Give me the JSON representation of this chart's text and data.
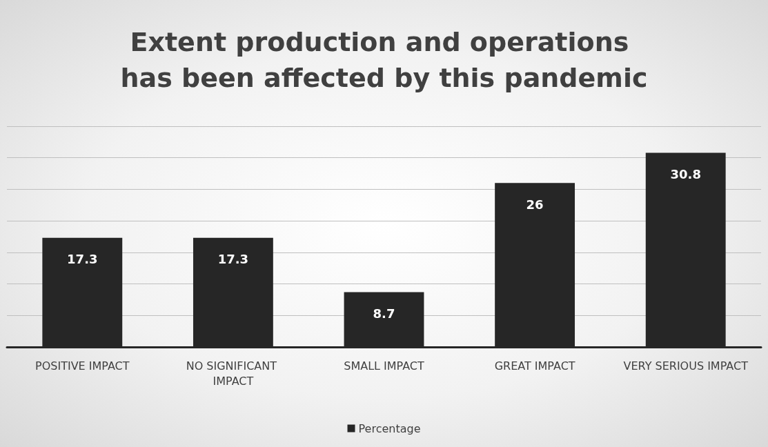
{
  "chart_data": {
    "type": "bar",
    "title": "Extent production and operations has been affected by this pandemic",
    "categories": [
      "POSITIVE IMPACT",
      "NO SIGNIFICANT IMPACT",
      "SMALL IMPACT",
      "GREAT IMPACT",
      "VERY SERIOUS IMPACT"
    ],
    "series": [
      {
        "name": "Percentage",
        "color": "#262626",
        "values": [
          17.3,
          17.3,
          8.7,
          26,
          30.8
        ]
      }
    ],
    "ylim": [
      0,
      35
    ],
    "yticks": [
      {
        "value": 0,
        "label": null
      },
      {
        "value": 5,
        "label": null
      },
      {
        "value": 10,
        "label": null
      },
      {
        "value": 15,
        "label": null
      },
      {
        "value": 20,
        "label": null
      },
      {
        "value": 25,
        "label": null
      },
      {
        "value": 30,
        "label": null
      },
      {
        "value": 35,
        "label": null
      }
    ],
    "tick_labels": "x",
    "grid": "y",
    "legend": "bottom",
    "data_labels": true
  }
}
